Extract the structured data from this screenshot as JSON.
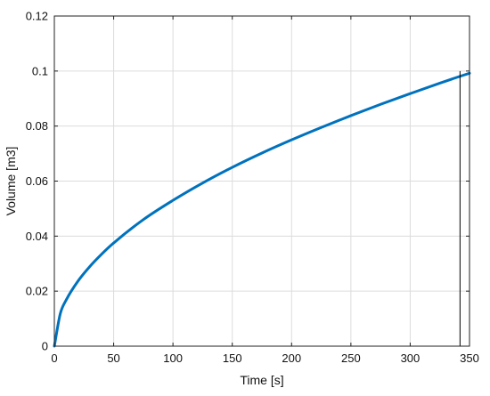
{
  "chart_data": {
    "type": "line",
    "title": "",
    "xlabel": "Time [s]",
    "ylabel": "Volume [m3]",
    "xlim": [
      0,
      350
    ],
    "ylim": [
      0,
      0.12
    ],
    "x_ticks": [
      0,
      50,
      100,
      150,
      200,
      250,
      300,
      350
    ],
    "y_ticks": [
      0,
      0.02,
      0.04,
      0.06,
      0.08,
      0.1,
      0.12
    ],
    "x_tick_labels": [
      "0",
      "50",
      "100",
      "150",
      "200",
      "250",
      "300",
      "350"
    ],
    "y_tick_labels": [
      "0",
      "0.02",
      "0.04",
      "0.06",
      "0.08",
      "0.1",
      "0.12"
    ],
    "grid": true,
    "series": [
      {
        "color": "#0072BD",
        "x": [
          0,
          5,
          10,
          20,
          30,
          40,
          50,
          75,
          100,
          125,
          150,
          175,
          200,
          225,
          250,
          275,
          300,
          325,
          340,
          350
        ],
        "y": [
          0,
          0.0118,
          0.0168,
          0.0237,
          0.029,
          0.0335,
          0.0375,
          0.046,
          0.053,
          0.0593,
          0.065,
          0.0702,
          0.075,
          0.0795,
          0.0838,
          0.0879,
          0.0918,
          0.0956,
          0.0978,
          0.0992
        ]
      }
    ],
    "markers": [
      {
        "type": "vline",
        "x": 342,
        "y_from": 0,
        "y_to": 0.1,
        "color": "#000000"
      }
    ]
  }
}
